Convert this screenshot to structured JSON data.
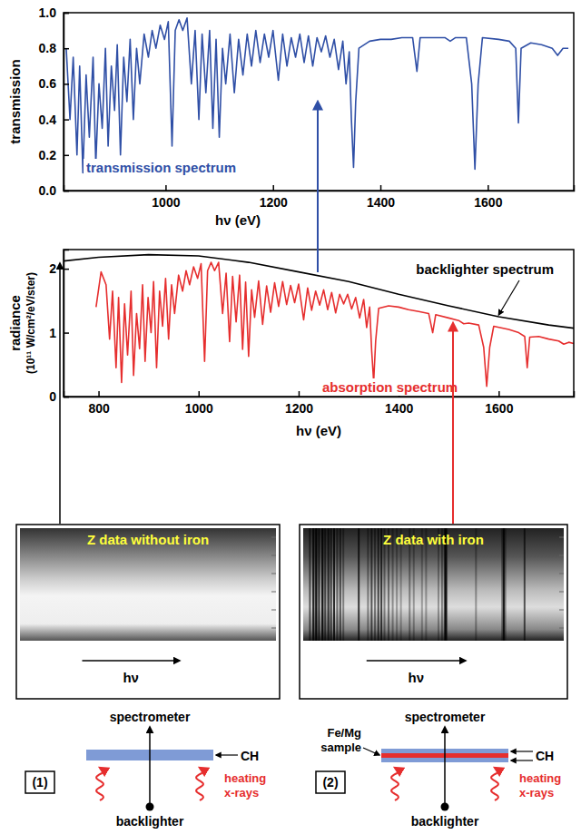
{
  "chart_data": [
    {
      "type": "line",
      "x_label": "hν (eV)",
      "y_label": "transmission",
      "xlim": [
        810,
        1760
      ],
      "ylim": [
        0,
        1.0
      ],
      "xticks": [
        1000,
        1200,
        1400,
        1600
      ],
      "yticks": [
        {
          "value": 0,
          "label": "0.0"
        },
        0.2,
        0.4,
        0.6,
        0.8,
        {
          "value": 1,
          "label": "1.0"
        }
      ],
      "series": [
        {
          "name": "transmission spectrum",
          "color": "#2f4fa6",
          "x": [
            815,
            822,
            828,
            835,
            840,
            846,
            852,
            858,
            865,
            870,
            876,
            882,
            888,
            893,
            899,
            905,
            910,
            916,
            922,
            928,
            934,
            940,
            946,
            952,
            960,
            968,
            975,
            982,
            990,
            998,
            1005,
            1012,
            1018,
            1025,
            1032,
            1040,
            1048,
            1055,
            1062,
            1068,
            1075,
            1082,
            1088,
            1094,
            1100,
            1106,
            1112,
            1120,
            1128,
            1136,
            1144,
            1152,
            1160,
            1168,
            1176,
            1184,
            1192,
            1200,
            1210,
            1218,
            1226,
            1234,
            1242,
            1250,
            1258,
            1266,
            1274,
            1282,
            1290,
            1298,
            1306,
            1314,
            1322,
            1330,
            1336,
            1342,
            1346,
            1350,
            1354,
            1360,
            1380,
            1400,
            1420,
            1440,
            1460,
            1468,
            1474,
            1500,
            1520,
            1530,
            1540,
            1560,
            1570,
            1576,
            1582,
            1590,
            1620,
            1640,
            1652,
            1657,
            1662,
            1680,
            1700,
            1720,
            1730,
            1740,
            1750
          ],
          "values": [
            0.8,
            0.4,
            0.75,
            0.2,
            0.7,
            0.1,
            0.65,
            0.3,
            0.75,
            0.15,
            0.6,
            0.35,
            0.8,
            0.25,
            0.7,
            0.45,
            0.82,
            0.2,
            0.75,
            0.5,
            0.85,
            0.4,
            0.8,
            0.6,
            0.88,
            0.75,
            0.9,
            0.8,
            0.93,
            0.85,
            0.95,
            0.25,
            0.9,
            0.96,
            0.9,
            0.97,
            0.6,
            0.9,
            0.4,
            0.88,
            0.55,
            0.9,
            0.35,
            0.85,
            0.3,
            0.8,
            0.6,
            0.88,
            0.55,
            0.85,
            0.65,
            0.88,
            0.7,
            0.9,
            0.72,
            0.88,
            0.75,
            0.9,
            0.62,
            0.88,
            0.7,
            0.86,
            0.75,
            0.88,
            0.72,
            0.87,
            0.7,
            0.86,
            0.78,
            0.87,
            0.75,
            0.85,
            0.68,
            0.84,
            0.6,
            0.78,
            0.4,
            0.13,
            0.5,
            0.8,
            0.84,
            0.85,
            0.85,
            0.86,
            0.86,
            0.67,
            0.86,
            0.86,
            0.86,
            0.84,
            0.86,
            0.86,
            0.6,
            0.12,
            0.6,
            0.86,
            0.85,
            0.84,
            0.8,
            0.38,
            0.8,
            0.83,
            0.82,
            0.8,
            0.76,
            0.8,
            0.8
          ]
        }
      ]
    },
    {
      "type": "line",
      "x_label": "hν (eV)",
      "y_label": [
        "radiance",
        "(10¹¹ W/cm²/eV/ster)"
      ],
      "xlim": [
        730,
        1750
      ],
      "ylim": [
        0,
        2.3
      ],
      "xticks": [
        800,
        1000,
        1200,
        1400,
        1600
      ],
      "yticks": [
        0,
        1,
        2
      ],
      "series": [
        {
          "name": "backlighter spectrum",
          "color": "#000000",
          "x": [
            730,
            800,
            900,
            1000,
            1100,
            1200,
            1300,
            1400,
            1500,
            1600,
            1700,
            1750
          ],
          "values": [
            2.12,
            2.18,
            2.22,
            2.2,
            2.1,
            1.95,
            1.8,
            1.6,
            1.42,
            1.25,
            1.12,
            1.07
          ]
        },
        {
          "name": "absorption spectrum",
          "color": "#e62e2e",
          "x": [
            795,
            805,
            815,
            822,
            828,
            835,
            840,
            846,
            852,
            858,
            865,
            870,
            876,
            882,
            888,
            893,
            899,
            905,
            910,
            916,
            922,
            928,
            934,
            940,
            946,
            952,
            960,
            968,
            975,
            982,
            990,
            998,
            1005,
            1012,
            1018,
            1025,
            1032,
            1040,
            1048,
            1055,
            1062,
            1068,
            1075,
            1082,
            1088,
            1094,
            1100,
            1106,
            1112,
            1120,
            1128,
            1136,
            1144,
            1152,
            1160,
            1168,
            1176,
            1184,
            1192,
            1200,
            1210,
            1218,
            1226,
            1234,
            1242,
            1250,
            1258,
            1266,
            1274,
            1282,
            1290,
            1298,
            1306,
            1314,
            1322,
            1330,
            1336,
            1342,
            1346,
            1350,
            1354,
            1360,
            1380,
            1400,
            1420,
            1440,
            1460,
            1468,
            1474,
            1500,
            1520,
            1530,
            1540,
            1560,
            1570,
            1576,
            1582,
            1590,
            1620,
            1640,
            1652,
            1657,
            1662,
            1680,
            1700,
            1720,
            1730,
            1740,
            1750
          ],
          "values": [
            1.4,
            1.95,
            1.75,
            0.9,
            1.65,
            0.45,
            1.55,
            0.22,
            1.45,
            0.65,
            1.65,
            0.33,
            1.3,
            0.75,
            1.75,
            0.55,
            1.55,
            1.0,
            1.8,
            0.45,
            1.65,
            1.1,
            1.85,
            0.9,
            1.75,
            1.3,
            1.9,
            1.65,
            1.97,
            1.75,
            2.03,
            1.85,
            2.08,
            0.55,
            1.97,
            2.1,
            1.97,
            2.1,
            1.3,
            1.93,
            0.86,
            1.88,
            1.17,
            1.9,
            0.74,
            1.79,
            0.63,
            1.67,
            1.24,
            1.81,
            1.13,
            1.73,
            1.32,
            1.78,
            1.41,
            1.8,
            1.44,
            1.74,
            1.47,
            1.76,
            1.2,
            1.7,
            1.35,
            1.65,
            1.43,
            1.67,
            1.36,
            1.63,
            1.31,
            1.6,
            1.45,
            1.6,
            1.37,
            1.55,
            1.23,
            1.52,
            1.08,
            1.4,
            0.72,
            0.23,
            0.87,
            1.38,
            1.42,
            1.4,
            1.36,
            1.33,
            1.3,
            1.0,
            1.28,
            1.23,
            1.19,
            1.14,
            1.15,
            1.12,
            0.77,
            0.16,
            0.77,
            1.1,
            1.05,
            1.0,
            0.94,
            0.45,
            0.93,
            0.94,
            0.9,
            0.87,
            0.82,
            0.85,
            0.83
          ]
        }
      ]
    }
  ],
  "panels": [
    {
      "title": "Z data without iron",
      "axis_label": "hν"
    },
    {
      "title": "Z data with iron",
      "axis_label": "hν"
    }
  ],
  "setups": [
    {
      "label": "(1)",
      "detector": "spectrometer",
      "layer": "CH",
      "heating": "heating x-rays",
      "source": "backlighter"
    },
    {
      "label": "(2)",
      "detector": "spectrometer",
      "sample": "Fe/Mg sample",
      "layer": "CH",
      "heating": "heating x-rays",
      "source": "backlighter"
    }
  ]
}
